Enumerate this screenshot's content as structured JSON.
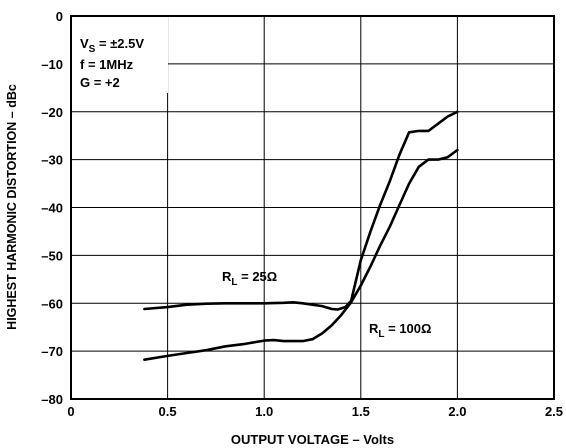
{
  "chart_data": {
    "type": "line",
    "xlabel": "OUTPUT VOLTAGE – Volts",
    "ylabel": "HIGHEST HARMONIC DISTORTION – dBc",
    "xlim": [
      0,
      2.5
    ],
    "ylim": [
      -80,
      0
    ],
    "xticks": [
      0,
      0.5,
      1.0,
      1.5,
      2.0,
      2.5
    ],
    "xtick_labels": [
      "0",
      "0.5",
      "1.0",
      "1.5",
      "2.0",
      "2.5"
    ],
    "yticks": [
      0,
      -10,
      -20,
      -30,
      -40,
      -50,
      -60,
      -70,
      -80
    ],
    "ytick_labels": [
      "0",
      "–10",
      "–20",
      "–30",
      "–40",
      "–50",
      "–60",
      "–70",
      "–80"
    ],
    "grid": true,
    "conditions": {
      "vs": {
        "main": "V",
        "sub": "S",
        "rest": " = ±2.5V"
      },
      "f": "f = 1MHz",
      "g": "G = +2"
    },
    "series": [
      {
        "label_main": "R",
        "label_sub": "L",
        "label_rest": " = 25Ω",
        "color": "#000000",
        "x": [
          0.38,
          0.5,
          0.6,
          0.7,
          0.8,
          0.9,
          1.0,
          1.1,
          1.15,
          1.2,
          1.25,
          1.3,
          1.35,
          1.38,
          1.42,
          1.45,
          1.5,
          1.55,
          1.6,
          1.65,
          1.7,
          1.75,
          1.8,
          1.85,
          1.9,
          1.95,
          2.0
        ],
        "y": [
          -61.2,
          -60.8,
          -60.3,
          -60.1,
          -60.0,
          -60.0,
          -60.0,
          -59.9,
          -59.8,
          -60.0,
          -60.3,
          -60.6,
          -61.2,
          -61.3,
          -60.8,
          -59.5,
          -51.0,
          -45.0,
          -39.5,
          -34.5,
          -29.0,
          -24.3,
          -24.0,
          -24.0,
          -22.5,
          -21.0,
          -20.0
        ]
      },
      {
        "label_main": "R",
        "label_sub": "L",
        "label_rest": " = 100Ω",
        "color": "#000000",
        "x": [
          0.38,
          0.5,
          0.6,
          0.7,
          0.8,
          0.9,
          1.0,
          1.05,
          1.1,
          1.2,
          1.25,
          1.3,
          1.35,
          1.4,
          1.45,
          1.5,
          1.55,
          1.6,
          1.65,
          1.7,
          1.75,
          1.8,
          1.85,
          1.9,
          1.95,
          2.0
        ],
        "y": [
          -71.8,
          -71.0,
          -70.4,
          -69.8,
          -69.0,
          -68.5,
          -67.8,
          -67.7,
          -67.9,
          -67.9,
          -67.5,
          -66.3,
          -64.6,
          -62.4,
          -59.8,
          -56.3,
          -52.3,
          -48.0,
          -44.0,
          -39.5,
          -35.0,
          -31.5,
          -30.0,
          -30.0,
          -29.5,
          -28.0
        ]
      }
    ]
  }
}
